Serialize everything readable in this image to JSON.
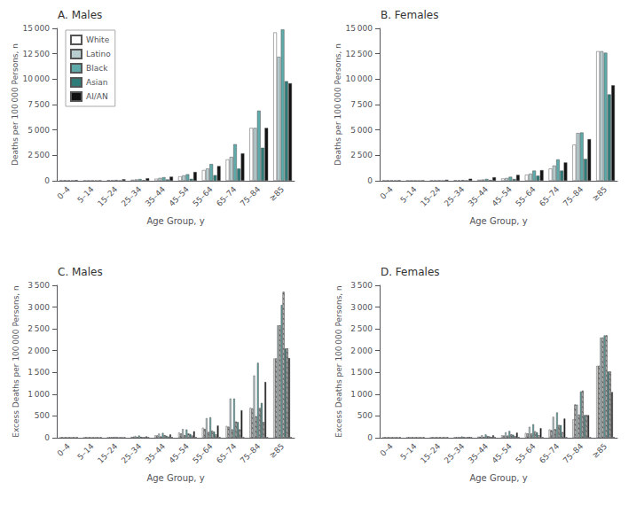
{
  "chart_data": [
    {
      "type": "bar",
      "title": "A. Males",
      "x_label": "Age Group, y",
      "y_label": "Deaths per 100 000 Persons, n",
      "categories": [
        "0–4",
        "5–14",
        "15–24",
        "25–34",
        "35–44",
        "45–54",
        "55–64",
        "65–74",
        "75–84",
        "≥85"
      ],
      "series": [
        {
          "name": "White",
          "color": "#ffffff",
          "values": [
            30,
            10,
            60,
            100,
            200,
            430,
            1050,
            2100,
            5200,
            14600
          ]
        },
        {
          "name": "Latino",
          "color": "#b8cdd0",
          "values": [
            50,
            15,
            50,
            130,
            280,
            530,
            1200,
            2350,
            5200,
            12200
          ]
        },
        {
          "name": "Black",
          "color": "#5eaaaa",
          "values": [
            40,
            15,
            80,
            170,
            350,
            640,
            1650,
            3600,
            6900,
            14900
          ]
        },
        {
          "name": "Asian",
          "color": "#2d7c7a",
          "values": [
            20,
            5,
            20,
            60,
            130,
            190,
            550,
            1200,
            3250,
            9800
          ]
        },
        {
          "name": "AI/AN",
          "color": "#111111",
          "values": [
            60,
            30,
            150,
            250,
            400,
            870,
            1450,
            2700,
            5200,
            9600
          ]
        }
      ],
      "ylim": [
        0,
        15000
      ],
      "yticks": [
        0,
        {
          "value": 2500,
          "label": "2 500"
        },
        {
          "value": 5000,
          "label": "5 000"
        },
        {
          "value": 7500,
          "label": "7 500"
        },
        {
          "value": 10000,
          "label": "10 000"
        },
        {
          "value": 12500,
          "label": "12 500"
        },
        {
          "value": 15000,
          "label": "15 000"
        }
      ],
      "grid": false,
      "legend": "upper left"
    },
    {
      "type": "bar",
      "title": "B. Females",
      "x_label": "Age Group, y",
      "y_label": "Deaths per 100 000 Persons, n",
      "categories": [
        "0–4",
        "5–14",
        "15–24",
        "25–34",
        "35–44",
        "45–54",
        "55–64",
        "65–74",
        "75–84",
        "≥85"
      ],
      "series": [
        {
          "name": "White",
          "color": "#ffffff",
          "values": [
            25,
            8,
            20,
            45,
            100,
            220,
            600,
            1200,
            3550,
            12750
          ]
        },
        {
          "name": "Latino",
          "color": "#b8cdd0",
          "values": [
            40,
            10,
            15,
            40,
            120,
            270,
            700,
            1500,
            4700,
            12750
          ]
        },
        {
          "name": "Black",
          "color": "#5eaaaa",
          "values": [
            35,
            12,
            30,
            70,
            180,
            390,
            1000,
            2100,
            4750,
            12600
          ]
        },
        {
          "name": "Asian",
          "color": "#2d7c7a",
          "values": [
            15,
            5,
            10,
            25,
            80,
            170,
            500,
            1000,
            2150,
            8500
          ]
        },
        {
          "name": "AI/AN",
          "color": "#111111",
          "values": [
            50,
            30,
            100,
            200,
            350,
            580,
            1050,
            1800,
            4100,
            9400
          ]
        }
      ],
      "ylim": [
        0,
        15000
      ],
      "yticks": [
        0,
        {
          "value": 2500,
          "label": "2 500"
        },
        {
          "value": 5000,
          "label": "5 000"
        },
        {
          "value": 7500,
          "label": "7 500"
        },
        {
          "value": 10000,
          "label": "10 000"
        },
        {
          "value": 12500,
          "label": "12 500"
        },
        {
          "value": 15000,
          "label": "15 000"
        }
      ],
      "grid": false
    },
    {
      "type": "bar",
      "title": "C. Males",
      "x_label": "Age Group, y",
      "y_label": "Excess Deaths per 100 000 Persons, n",
      "categories": [
        "0–4",
        "5–14",
        "15–24",
        "25–34",
        "35–44",
        "45–54",
        "55–64",
        "65–74",
        "75–84",
        "≥85"
      ],
      "series": [
        {
          "color": "#ffffff",
          "values": [
            2,
            2,
            8,
            20,
            55,
            120,
            230,
            270,
            690,
            1820
          ]
        },
        {
          "color": "white",
          "values": [
            2,
            2,
            6,
            20,
            50,
            95,
            200,
            250,
            670,
            1820
          ]
        },
        {
          "color": "#b8cdd0",
          "values": [
            2,
            2,
            15,
            40,
            95,
            200,
            450,
            900,
            1430,
            2580
          ]
        },
        {
          "color": "white",
          "values": [
            2,
            2,
            5,
            15,
            28,
            58,
            130,
            190,
            490,
            2580
          ]
        },
        {
          "color": "#5eaaaa",
          "values": [
            2,
            2,
            20,
            50,
            110,
            190,
            470,
            900,
            1720,
            3050
          ]
        },
        {
          "color": "white",
          "values": [
            2,
            2,
            10,
            18,
            58,
            95,
            160,
            370,
            680,
            3350
          ]
        },
        {
          "color": "#2d7c7a",
          "values": [
            2,
            2,
            5,
            15,
            45,
            85,
            140,
            360,
            800,
            2050
          ]
        },
        {
          "color": "white",
          "values": [
            2,
            2,
            3,
            8,
            22,
            48,
            75,
            190,
            360,
            2050
          ]
        },
        {
          "color": "#111111",
          "values": [
            2,
            2,
            10,
            30,
            75,
            150,
            280,
            630,
            1280,
            1830
          ]
        },
        {
          "color": "white",
          "values": [
            2,
            2,
            2,
            2,
            2,
            2,
            2,
            2,
            2,
            2
          ]
        }
      ],
      "ylim": [
        0,
        3500
      ],
      "yticks": [
        0,
        500,
        {
          "value": 1000,
          "label": "1 000"
        },
        {
          "value": 1500,
          "label": "1 500"
        },
        {
          "value": 2000,
          "label": "2 000"
        },
        {
          "value": 2500,
          "label": "2 500"
        },
        {
          "value": 3000,
          "label": "3 000"
        },
        {
          "value": 3500,
          "label": "3 500"
        }
      ],
      "grid": false
    },
    {
      "type": "bar",
      "title": "D. Females",
      "x_label": "Age Group, y",
      "y_label": "Excess Deaths per 100 000 Persons, n",
      "categories": [
        "0–4",
        "5–14",
        "15–24",
        "25–34",
        "35–44",
        "45–54",
        "55–64",
        "65–74",
        "75–84",
        "≥85"
      ],
      "series": [
        {
          "color": "#ffffff",
          "values": [
            2,
            2,
            2,
            8,
            25,
            55,
            110,
            190,
            420,
            1650
          ]
        },
        {
          "color": "white",
          "values": [
            2,
            2,
            2,
            8,
            20,
            48,
            95,
            170,
            760,
            1650
          ]
        },
        {
          "color": "#b8cdd0",
          "values": [
            2,
            2,
            5,
            18,
            55,
            125,
            250,
            480,
            760,
            2300
          ]
        },
        {
          "color": "white",
          "values": [
            2,
            2,
            2,
            8,
            18,
            48,
            95,
            195,
            530,
            2300
          ]
        },
        {
          "color": "#5eaaaa",
          "values": [
            2,
            2,
            10,
            28,
            75,
            155,
            310,
            580,
            1060,
            2350
          ]
        },
        {
          "color": "white",
          "values": [
            2,
            2,
            5,
            14,
            38,
            76,
            145,
            290,
            1080,
            2350
          ]
        },
        {
          "color": "#2d7c7a",
          "values": [
            2,
            2,
            3,
            10,
            32,
            68,
            125,
            290,
            520,
            1520
          ]
        },
        {
          "color": "white",
          "values": [
            2,
            2,
            2,
            5,
            14,
            33,
            58,
            125,
            520,
            1520
          ]
        },
        {
          "color": "#111111",
          "values": [
            2,
            2,
            5,
            18,
            55,
            115,
            220,
            440,
            520,
            1050
          ]
        },
        {
          "color": "white",
          "values": [
            2,
            2,
            2,
            2,
            2,
            2,
            2,
            2,
            2,
            2
          ]
        }
      ],
      "ylim": [
        0,
        3500
      ],
      "yticks": [
        0,
        500,
        {
          "value": 1000,
          "label": "1 000"
        },
        {
          "value": 1500,
          "label": "1 500"
        },
        {
          "value": 2000,
          "label": "2 000"
        },
        {
          "value": 2500,
          "label": "2 500"
        },
        {
          "value": 3000,
          "label": "3 000"
        },
        {
          "value": 3500,
          "label": "3 500"
        }
      ],
      "grid": false
    }
  ]
}
